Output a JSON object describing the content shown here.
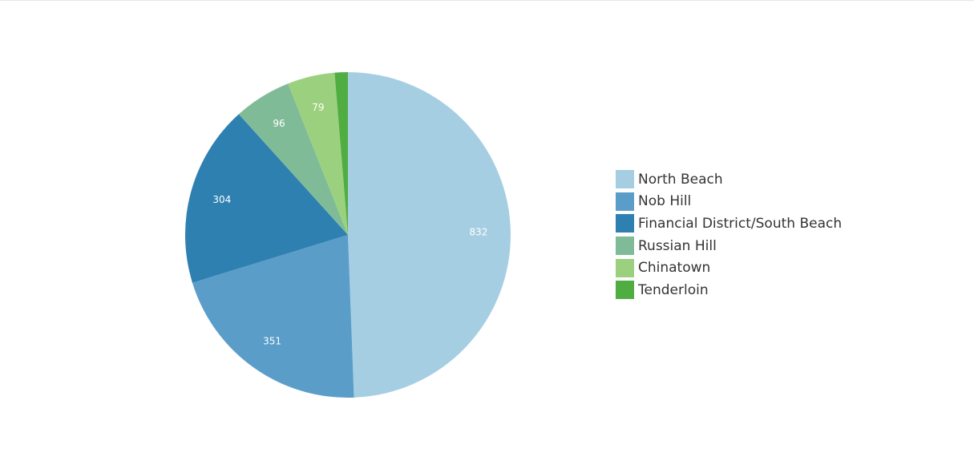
{
  "chart_data": {
    "type": "pie",
    "title": "",
    "categories": [
      "North Beach",
      "Nob Hill",
      "Financial District/South Beach",
      "Russian Hill",
      "Chinatown",
      "Tenderloin"
    ],
    "values": [
      832,
      351,
      304,
      96,
      79,
      22
    ],
    "value_labels": [
      "832",
      "351",
      "304",
      "96",
      "79",
      ""
    ],
    "colors": [
      "#a6cee3",
      "#5b9dc9",
      "#2e80b0",
      "#80bb98",
      "#9bd17e",
      "#50ad42"
    ],
    "legend_position": "right",
    "direction": "clockwise",
    "start": "top"
  }
}
